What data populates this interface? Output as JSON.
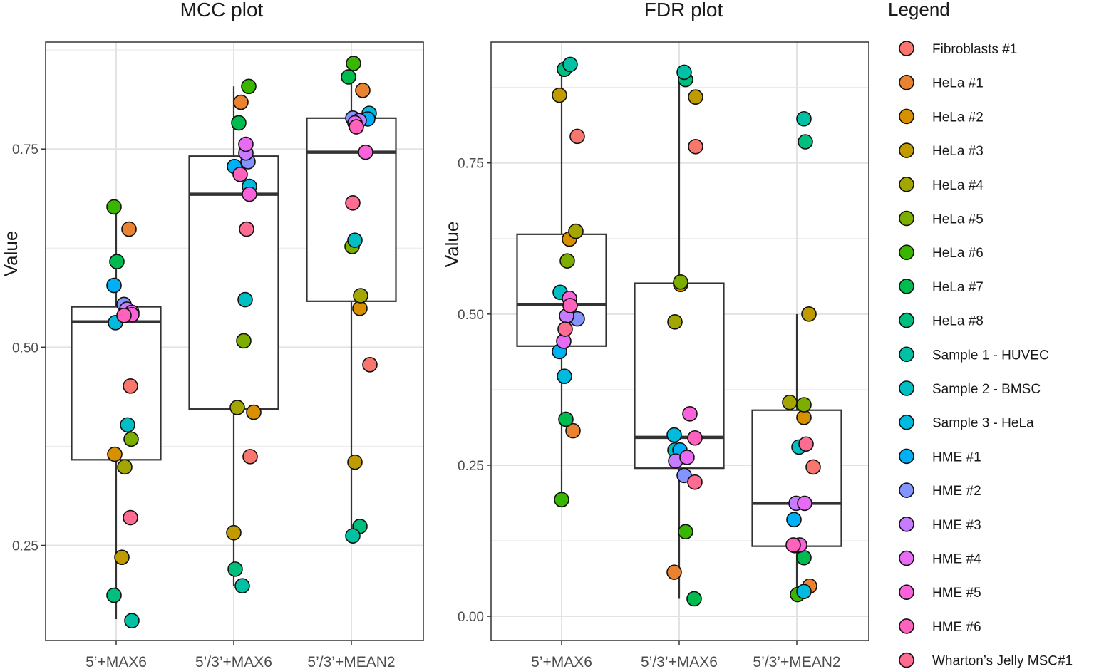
{
  "legend": {
    "title": "Legend",
    "items": [
      {
        "name": "Fibroblasts #1",
        "color": "#F8766D"
      },
      {
        "name": "HeLa #1",
        "color": "#EA8331"
      },
      {
        "name": "HeLa #2",
        "color": "#D89000"
      },
      {
        "name": "HeLa #3",
        "color": "#C09B00"
      },
      {
        "name": "HeLa #4",
        "color": "#A3A500"
      },
      {
        "name": "HeLa #5",
        "color": "#7CAE00"
      },
      {
        "name": "HeLa #6",
        "color": "#39B600"
      },
      {
        "name": "HeLa #7",
        "color": "#00BB4E"
      },
      {
        "name": "HeLa #8",
        "color": "#00BF7D"
      },
      {
        "name": "Sample 1 - HUVEC",
        "color": "#00C1A3"
      },
      {
        "name": "Sample 2 - BMSC",
        "color": "#00BFC4"
      },
      {
        "name": "Sample 3 - HeLa",
        "color": "#00BAE0"
      },
      {
        "name": "HME #1",
        "color": "#00B0F6"
      },
      {
        "name": "HME #2",
        "color": "#8494FF"
      },
      {
        "name": "HME #3",
        "color": "#C77CFF"
      },
      {
        "name": "HME #4",
        "color": "#E76BF3"
      },
      {
        "name": "HME #5",
        "color": "#FA62DB"
      },
      {
        "name": "HME #6",
        "color": "#FF62BC"
      },
      {
        "name": "Wharton’s Jelly MSC#1",
        "color": "#FF6C91"
      }
    ]
  },
  "chart_data": [
    {
      "type": "boxplot",
      "title": "MCC plot",
      "ylabel": "Value",
      "xlabel": "",
      "ylim": [
        0.13,
        0.885
      ],
      "yticks": [
        0.25,
        0.5,
        0.75
      ],
      "ytick_labels": [
        "0.25",
        "0.50",
        "0.75"
      ],
      "grid": true,
      "categories": [
        "5’+MAX6",
        "5’/3’+MAX6",
        "5’/3’+MEAN2"
      ],
      "boxes": [
        {
          "q1": 0.358,
          "median": 0.532,
          "q3": 0.551,
          "whisker_low": 0.157,
          "whisker_high": 0.677
        },
        {
          "q1": 0.422,
          "median": 0.693,
          "q3": 0.741,
          "whisker_low": 0.199,
          "whisker_high": 0.829
        },
        {
          "q1": 0.558,
          "median": 0.746,
          "q3": 0.789,
          "whisker_low": 0.262,
          "whisker_high": 0.858
        }
      ],
      "points": [
        [
          {
            "s": 0,
            "y": 0.451
          },
          {
            "s": 1,
            "y": 0.649
          },
          {
            "s": 2,
            "y": 0.365
          },
          {
            "s": 3,
            "y": 0.235
          },
          {
            "s": 4,
            "y": 0.349
          },
          {
            "s": 5,
            "y": 0.384
          },
          {
            "s": 6,
            "y": 0.677
          },
          {
            "s": 7,
            "y": 0.608
          },
          {
            "s": 8,
            "y": 0.187
          },
          {
            "s": 9,
            "y": 0.155
          },
          {
            "s": 10,
            "y": 0.402
          },
          {
            "s": 11,
            "y": 0.531
          },
          {
            "s": 12,
            "y": 0.578
          },
          {
            "s": 13,
            "y": 0.554
          },
          {
            "s": 14,
            "y": 0.548
          },
          {
            "s": 15,
            "y": 0.544
          },
          {
            "s": 16,
            "y": 0.541
          },
          {
            "s": 17,
            "y": 0.54
          },
          {
            "s": 18,
            "y": 0.285
          }
        ],
        [
          {
            "s": 0,
            "y": 0.362
          },
          {
            "s": 1,
            "y": 0.809
          },
          {
            "s": 2,
            "y": 0.418
          },
          {
            "s": 3,
            "y": 0.266
          },
          {
            "s": 4,
            "y": 0.424
          },
          {
            "s": 5,
            "y": 0.508
          },
          {
            "s": 6,
            "y": 0.829
          },
          {
            "s": 7,
            "y": 0.783
          },
          {
            "s": 8,
            "y": 0.22
          },
          {
            "s": 9,
            "y": 0.199
          },
          {
            "s": 10,
            "y": 0.56
          },
          {
            "s": 11,
            "y": 0.703
          },
          {
            "s": 12,
            "y": 0.728
          },
          {
            "s": 13,
            "y": 0.734
          },
          {
            "s": 14,
            "y": 0.745
          },
          {
            "s": 15,
            "y": 0.756
          },
          {
            "s": 16,
            "y": 0.693
          },
          {
            "s": 17,
            "y": 0.718
          },
          {
            "s": 18,
            "y": 0.649
          }
        ],
        [
          {
            "s": 0,
            "y": 0.478
          },
          {
            "s": 1,
            "y": 0.824
          },
          {
            "s": 2,
            "y": 0.549
          },
          {
            "s": 3,
            "y": 0.355
          },
          {
            "s": 4,
            "y": 0.565
          },
          {
            "s": 5,
            "y": 0.627
          },
          {
            "s": 6,
            "y": 0.858
          },
          {
            "s": 7,
            "y": 0.841
          },
          {
            "s": 8,
            "y": 0.274
          },
          {
            "s": 9,
            "y": 0.262
          },
          {
            "s": 10,
            "y": 0.635
          },
          {
            "s": 11,
            "y": 0.795
          },
          {
            "s": 12,
            "y": 0.788
          },
          {
            "s": 13,
            "y": 0.789
          },
          {
            "s": 14,
            "y": 0.786
          },
          {
            "s": 15,
            "y": 0.783
          },
          {
            "s": 16,
            "y": 0.746
          },
          {
            "s": 17,
            "y": 0.778
          },
          {
            "s": 18,
            "y": 0.682
          }
        ]
      ]
    },
    {
      "type": "boxplot",
      "title": "FDR plot",
      "ylabel": "Value",
      "xlabel": "",
      "ylim": [
        -0.04,
        0.95
      ],
      "yticks": [
        0.0,
        0.25,
        0.5,
        0.75
      ],
      "ytick_labels": [
        "0.00",
        "0.25",
        "0.50",
        "0.75"
      ],
      "grid": true,
      "categories": [
        "5’+MAX6",
        "5’/3’+MAX6",
        "5’/3’+MEAN2"
      ],
      "boxes": [
        {
          "q1": 0.447,
          "median": 0.516,
          "q3": 0.632,
          "whisker_low": 0.193,
          "whisker_high": 0.911
        },
        {
          "q1": 0.245,
          "median": 0.296,
          "q3": 0.551,
          "whisker_low": 0.029,
          "whisker_high": 0.892
        },
        {
          "q1": 0.116,
          "median": 0.187,
          "q3": 0.341,
          "whisker_low": 0.036,
          "whisker_high": 0.5
        }
      ],
      "points": [
        [
          {
            "s": 0,
            "y": 0.794
          },
          {
            "s": 1,
            "y": 0.307
          },
          {
            "s": 2,
            "y": 0.624
          },
          {
            "s": 3,
            "y": 0.862
          },
          {
            "s": 4,
            "y": 0.637
          },
          {
            "s": 5,
            "y": 0.588
          },
          {
            "s": 6,
            "y": 0.193
          },
          {
            "s": 7,
            "y": 0.326
          },
          {
            "s": 8,
            "y": 0.905
          },
          {
            "s": 9,
            "y": 0.913
          },
          {
            "s": 10,
            "y": 0.536
          },
          {
            "s": 11,
            "y": 0.397
          },
          {
            "s": 12,
            "y": 0.438
          },
          {
            "s": 13,
            "y": 0.492
          },
          {
            "s": 14,
            "y": 0.497
          },
          {
            "s": 15,
            "y": 0.455
          },
          {
            "s": 16,
            "y": 0.526
          },
          {
            "s": 17,
            "y": 0.514
          },
          {
            "s": 18,
            "y": 0.475
          }
        ],
        [
          {
            "s": 0,
            "y": 0.777
          },
          {
            "s": 1,
            "y": 0.073
          },
          {
            "s": 2,
            "y": 0.549
          },
          {
            "s": 3,
            "y": 0.859
          },
          {
            "s": 4,
            "y": 0.487
          },
          {
            "s": 5,
            "y": 0.553
          },
          {
            "s": 6,
            "y": 0.14
          },
          {
            "s": 7,
            "y": 0.029
          },
          {
            "s": 8,
            "y": 0.888
          },
          {
            "s": 9,
            "y": 0.9
          },
          {
            "s": 10,
            "y": 0.275
          },
          {
            "s": 11,
            "y": 0.3
          },
          {
            "s": 12,
            "y": 0.275
          },
          {
            "s": 13,
            "y": 0.233
          },
          {
            "s": 14,
            "y": 0.257
          },
          {
            "s": 15,
            "y": 0.263
          },
          {
            "s": 16,
            "y": 0.335
          },
          {
            "s": 17,
            "y": 0.295
          },
          {
            "s": 18,
            "y": 0.222
          }
        ],
        [
          {
            "s": 0,
            "y": 0.247
          },
          {
            "s": 1,
            "y": 0.05
          },
          {
            "s": 2,
            "y": 0.329
          },
          {
            "s": 3,
            "y": 0.5
          },
          {
            "s": 4,
            "y": 0.354
          },
          {
            "s": 5,
            "y": 0.35
          },
          {
            "s": 6,
            "y": 0.036
          },
          {
            "s": 7,
            "y": 0.097
          },
          {
            "s": 8,
            "y": 0.785
          },
          {
            "s": 9,
            "y": 0.823
          },
          {
            "s": 10,
            "y": 0.28
          },
          {
            "s": 11,
            "y": 0.041
          },
          {
            "s": 12,
            "y": 0.16
          },
          {
            "s": 13,
            "y": 0.117
          },
          {
            "s": 14,
            "y": 0.187
          },
          {
            "s": 15,
            "y": 0.187
          },
          {
            "s": 16,
            "y": 0.118
          },
          {
            "s": 17,
            "y": 0.118
          },
          {
            "s": 18,
            "y": 0.285
          }
        ]
      ]
    }
  ]
}
